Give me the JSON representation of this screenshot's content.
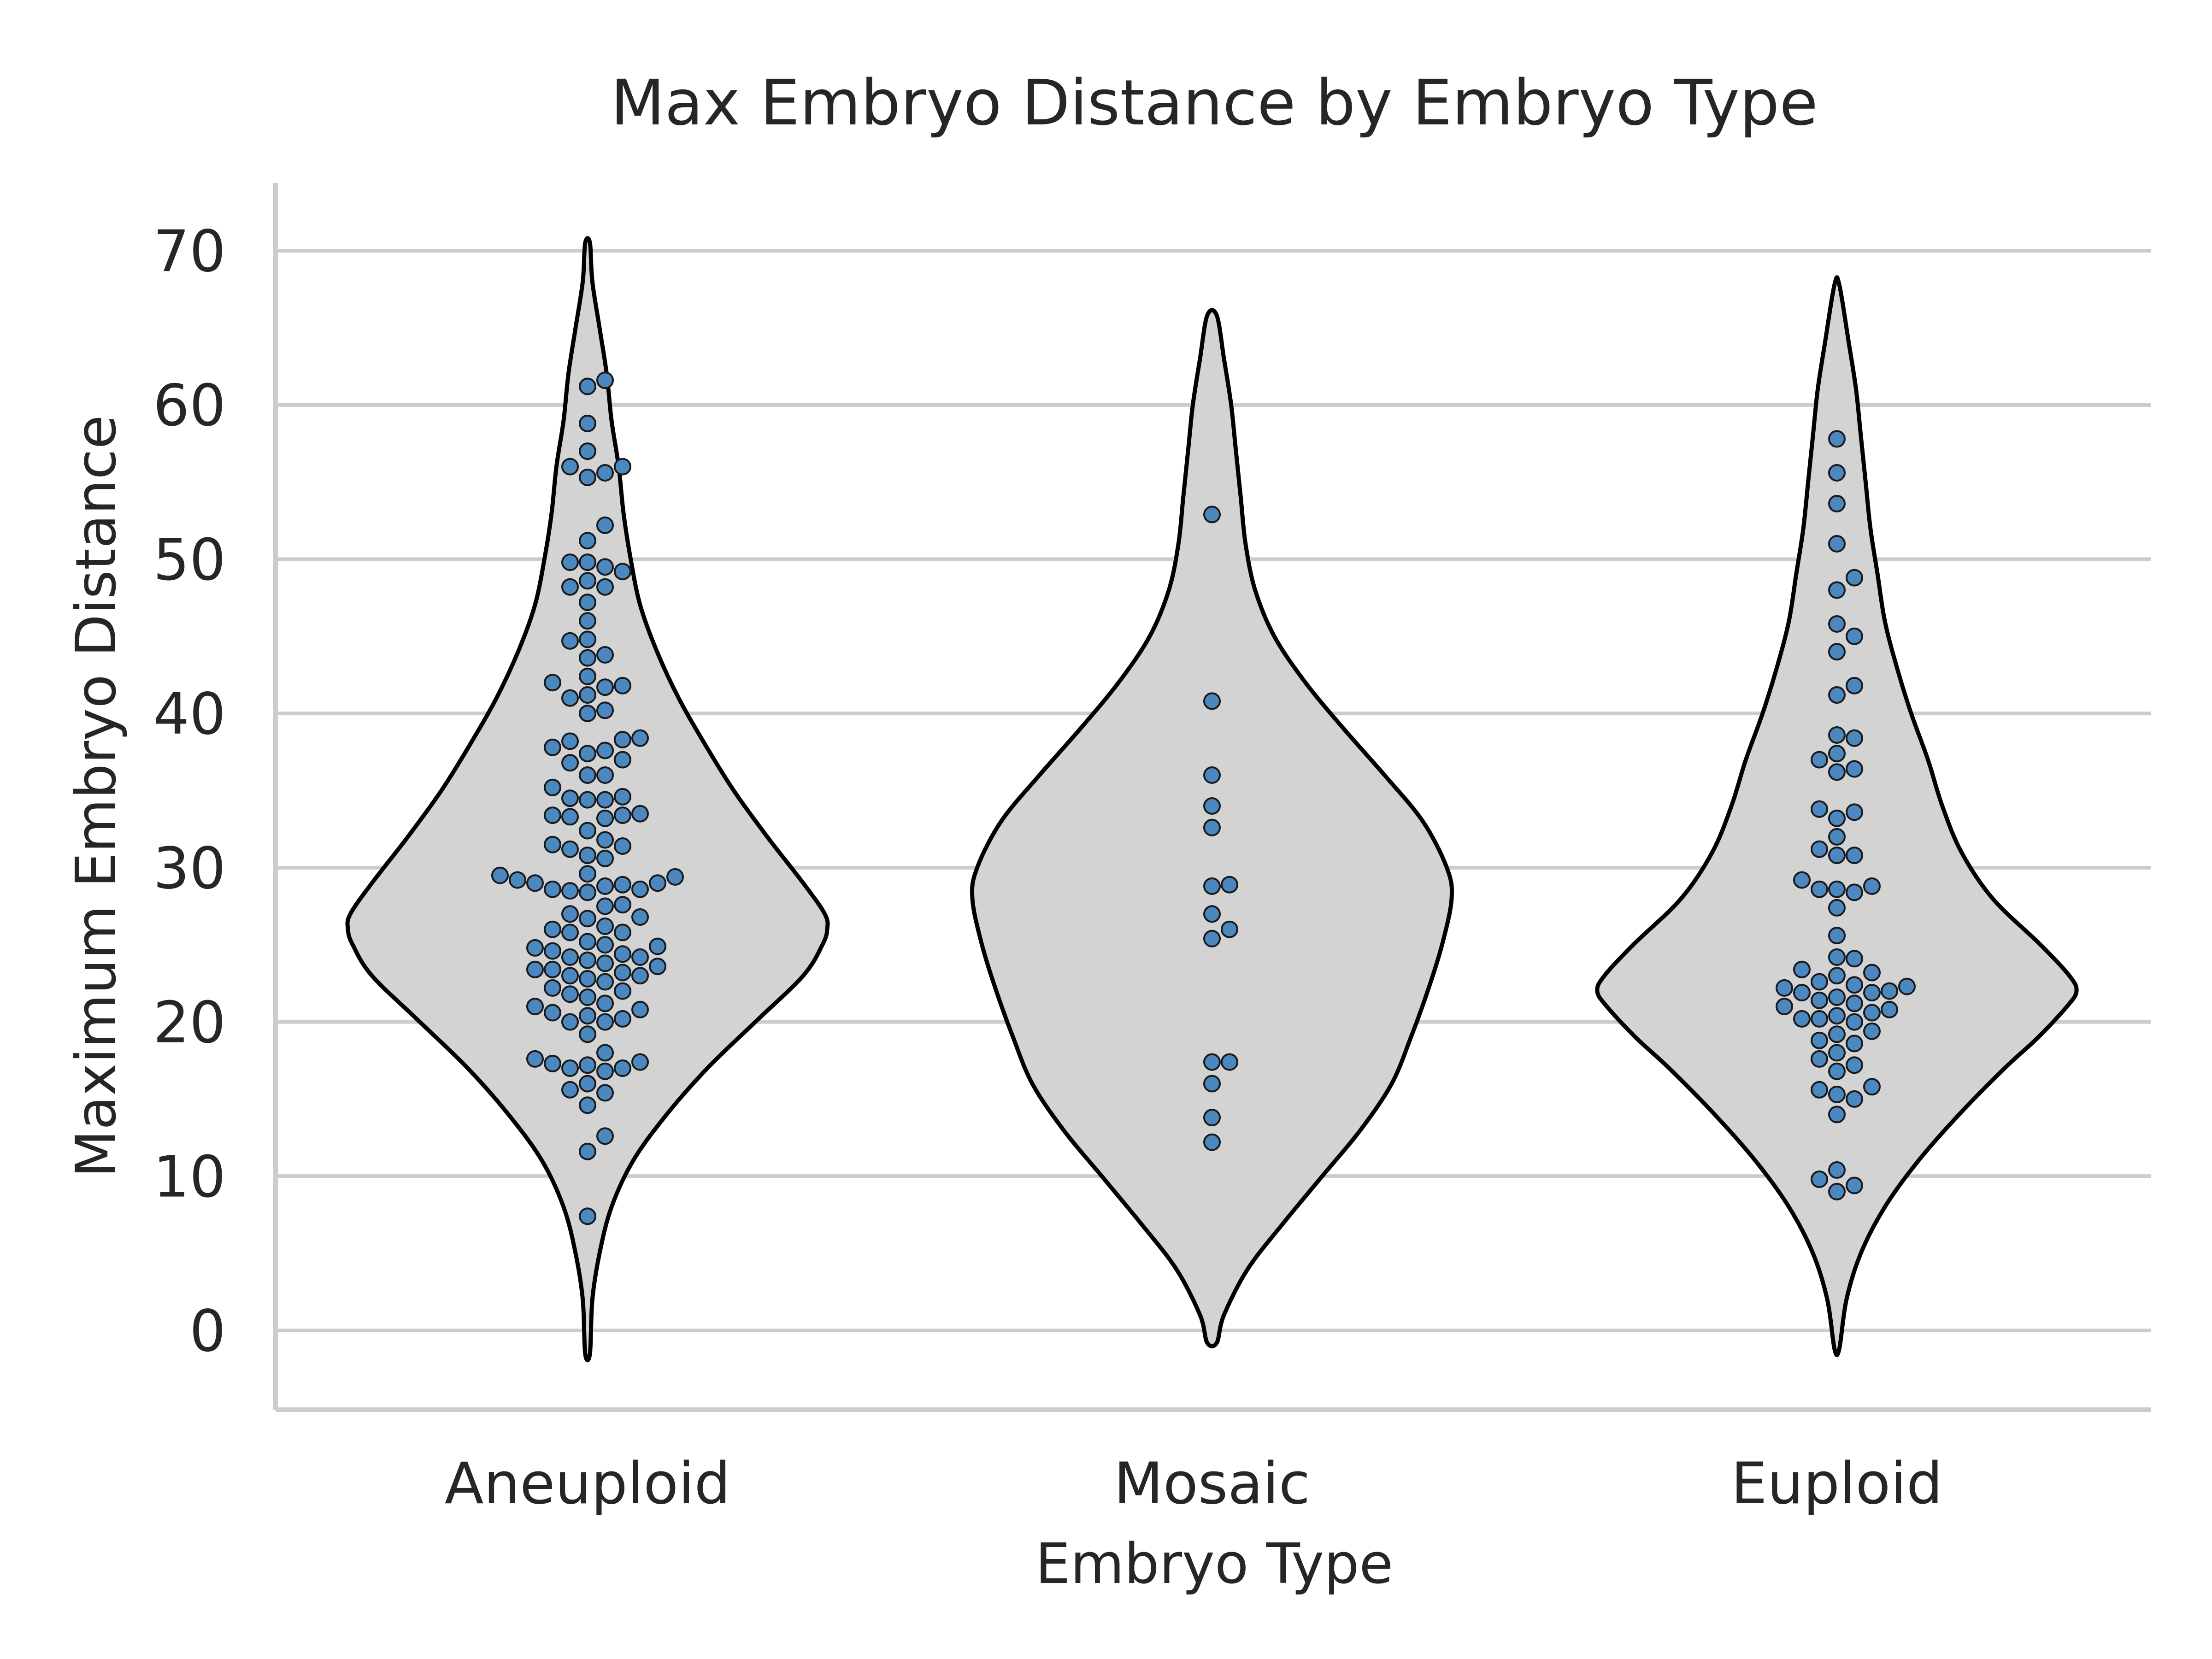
{
  "chart_data": {
    "type": "violin",
    "title": "Max Embryo Distance by Embryo Type",
    "xlabel": "Embryo Type",
    "ylabel": "Maximum Embryo Distance",
    "categories": [
      "Aneuploid",
      "Mosaic",
      "Euploid"
    ],
    "ylim": [
      -5,
      75
    ],
    "yticks": [
      0,
      10,
      20,
      30,
      40,
      50,
      60,
      70
    ],
    "grid": "horizontal",
    "colors": {
      "violin_fill": "#d3d3d3",
      "violin_edge": "#000000",
      "point_fill": "#4c88c0",
      "point_edge": "#1a1a1a",
      "grid": "#cccccc"
    },
    "series": [
      {
        "category": "Aneuploid",
        "range": [
          -1.5,
          70.5
        ],
        "density_profile": [
          [
            -1.5,
            0.01
          ],
          [
            2,
            0.02
          ],
          [
            5,
            0.05
          ],
          [
            8,
            0.1
          ],
          [
            11,
            0.19
          ],
          [
            14,
            0.33
          ],
          [
            17,
            0.5
          ],
          [
            20,
            0.7
          ],
          [
            23,
            0.9
          ],
          [
            25,
            0.98
          ],
          [
            26,
            1.0
          ],
          [
            27,
            0.99
          ],
          [
            29,
            0.9
          ],
          [
            32,
            0.75
          ],
          [
            35,
            0.61
          ],
          [
            38,
            0.49
          ],
          [
            41,
            0.38
          ],
          [
            44,
            0.29
          ],
          [
            47,
            0.22
          ],
          [
            50,
            0.18
          ],
          [
            53,
            0.15
          ],
          [
            56,
            0.13
          ],
          [
            59,
            0.1
          ],
          [
            62,
            0.08
          ],
          [
            65,
            0.05
          ],
          [
            68,
            0.02
          ],
          [
            70.5,
            0.01
          ]
        ],
        "values": [
          61.6,
          61.2,
          58.8,
          57.0,
          56.0,
          56.0,
          55.6,
          55.3,
          52.2,
          51.2,
          49.8,
          49.8,
          49.5,
          49.2,
          48.6,
          48.2,
          48.2,
          47.2,
          46.0,
          44.8,
          44.7,
          43.8,
          43.6,
          42.4,
          42.0,
          41.8,
          41.7,
          41.2,
          41.0,
          40.2,
          40.0,
          38.4,
          38.3,
          38.2,
          37.8,
          37.6,
          37.4,
          37.0,
          36.8,
          36.0,
          36.0,
          35.2,
          34.6,
          34.5,
          34.4,
          34.4,
          33.5,
          33.4,
          33.4,
          33.3,
          33.2,
          32.4,
          31.8,
          31.5,
          31.4,
          31.2,
          30.8,
          30.6,
          29.6,
          29.5,
          29.4,
          29.2,
          29.0,
          29.0,
          28.9,
          28.8,
          28.6,
          28.6,
          28.5,
          28.4,
          27.6,
          27.5,
          27.0,
          26.8,
          26.7,
          26.2,
          26.0,
          25.8,
          25.8,
          25.2,
          25.0,
          24.9,
          24.8,
          24.6,
          24.4,
          24.2,
          24.2,
          24.0,
          23.8,
          23.6,
          23.4,
          23.4,
          23.2,
          23.0,
          23.0,
          22.8,
          22.6,
          22.2,
          22.0,
          21.8,
          21.6,
          21.2,
          21.0,
          20.8,
          20.6,
          20.4,
          20.2,
          20.0,
          20.0,
          19.2,
          18.0,
          17.6,
          17.4,
          17.3,
          17.2,
          17.0,
          17.0,
          16.8,
          16.0,
          15.6,
          15.4,
          14.6,
          12.6,
          11.6,
          7.4
        ]
      },
      {
        "category": "Mosaic",
        "range": [
          -0.8,
          65.8
        ],
        "density_profile": [
          [
            -0.8,
            0.02
          ],
          [
            1,
            0.05
          ],
          [
            4,
            0.15
          ],
          [
            7,
            0.3
          ],
          [
            10,
            0.46
          ],
          [
            13,
            0.62
          ],
          [
            16,
            0.75
          ],
          [
            19,
            0.83
          ],
          [
            22,
            0.9
          ],
          [
            25,
            0.96
          ],
          [
            28,
            1.0
          ],
          [
            30,
            0.98
          ],
          [
            33,
            0.88
          ],
          [
            36,
            0.72
          ],
          [
            39,
            0.55
          ],
          [
            42,
            0.39
          ],
          [
            45,
            0.26
          ],
          [
            48,
            0.18
          ],
          [
            51,
            0.14
          ],
          [
            54,
            0.12
          ],
          [
            57,
            0.1
          ],
          [
            60,
            0.08
          ],
          [
            63,
            0.05
          ],
          [
            65.8,
            0.02
          ]
        ],
        "values": [
          52.9,
          40.8,
          36.0,
          34.0,
          32.6,
          28.9,
          28.8,
          27.0,
          26.0,
          25.4,
          17.4,
          17.4,
          16.0,
          13.8,
          12.2
        ]
      },
      {
        "category": "Euploid",
        "range": [
          -1.2,
          67.8
        ],
        "density_profile": [
          [
            -1.2,
            0.01
          ],
          [
            2,
            0.04
          ],
          [
            5,
            0.1
          ],
          [
            8,
            0.2
          ],
          [
            11,
            0.34
          ],
          [
            14,
            0.51
          ],
          [
            17,
            0.7
          ],
          [
            19,
            0.84
          ],
          [
            21,
            0.96
          ],
          [
            22,
            1.0
          ],
          [
            23,
            0.97
          ],
          [
            25,
            0.85
          ],
          [
            28,
            0.65
          ],
          [
            31,
            0.52
          ],
          [
            34,
            0.44
          ],
          [
            37,
            0.38
          ],
          [
            40,
            0.31
          ],
          [
            43,
            0.25
          ],
          [
            46,
            0.2
          ],
          [
            49,
            0.17
          ],
          [
            52,
            0.14
          ],
          [
            55,
            0.12
          ],
          [
            58,
            0.1
          ],
          [
            61,
            0.08
          ],
          [
            64,
            0.05
          ],
          [
            67.8,
            0.01
          ]
        ],
        "values": [
          57.8,
          55.6,
          53.6,
          51.0,
          48.8,
          48.0,
          45.8,
          45.0,
          44.0,
          41.8,
          41.2,
          38.6,
          38.4,
          37.4,
          37.0,
          36.4,
          36.2,
          33.8,
          33.6,
          33.2,
          32.0,
          31.2,
          30.8,
          30.8,
          29.2,
          28.8,
          28.6,
          28.6,
          28.4,
          27.4,
          25.6,
          24.2,
          24.1,
          23.4,
          23.2,
          23.0,
          22.6,
          22.4,
          22.3,
          22.2,
          22.0,
          21.9,
          21.9,
          21.6,
          21.4,
          21.2,
          21.0,
          20.8,
          20.6,
          20.4,
          20.2,
          20.2,
          20.0,
          19.4,
          19.2,
          18.8,
          18.6,
          18.0,
          17.6,
          17.2,
          16.8,
          15.8,
          15.6,
          15.3,
          15.0,
          14.0,
          10.4,
          9.8,
          9.4,
          9.0
        ]
      }
    ]
  }
}
